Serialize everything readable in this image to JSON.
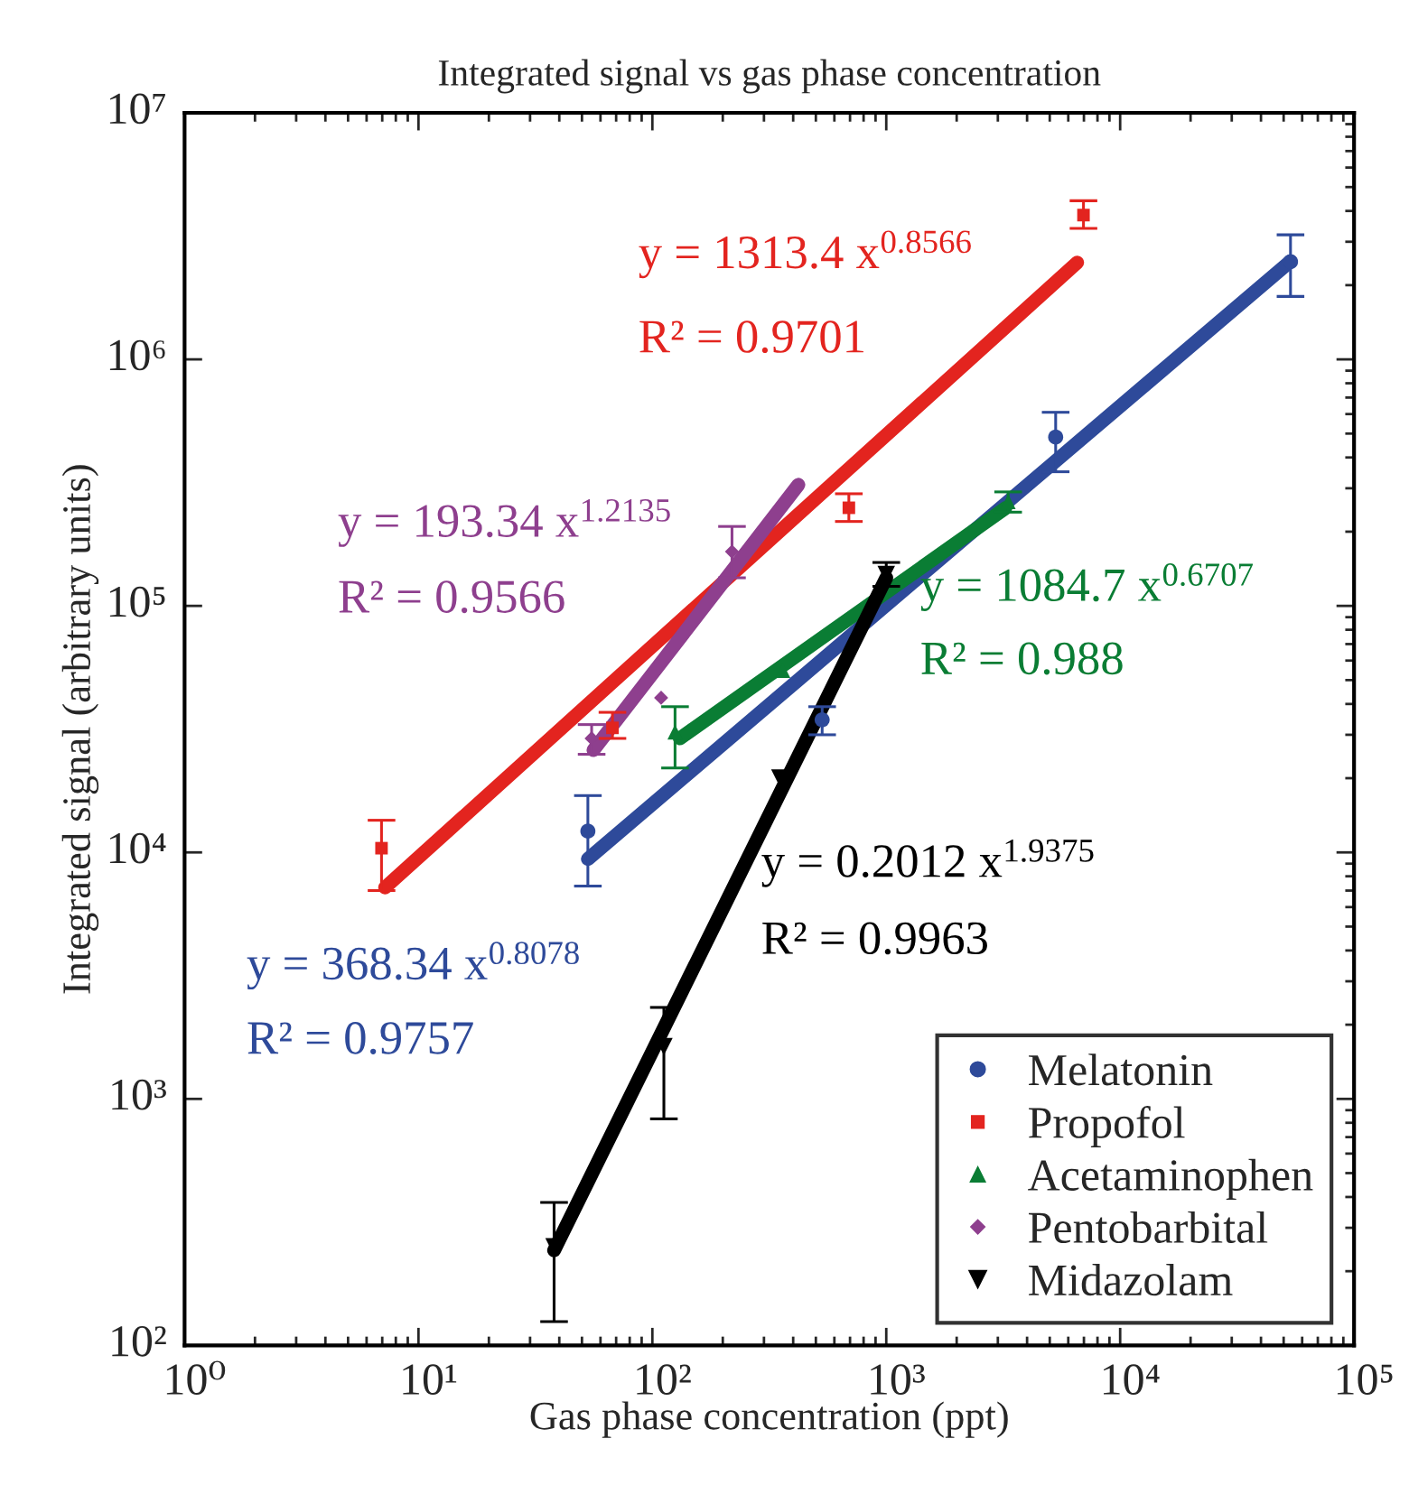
{
  "chart_data": {
    "type": "scatter",
    "title": "Integrated signal vs gas phase concentration",
    "xlabel": "Gas phase concentration (ppt)",
    "ylabel": "Integrated signal (arbitrary units)",
    "log": "xy",
    "xlim": [
      1,
      100000
    ],
    "ylim": [
      100,
      10000000
    ],
    "xticks": [
      {
        "value": 1,
        "label": "10⁰"
      },
      {
        "value": 10,
        "label": "10¹"
      },
      {
        "value": 100,
        "label": "10²"
      },
      {
        "value": 1000,
        "label": "10³"
      },
      {
        "value": 10000,
        "label": "10⁴"
      },
      {
        "value": 100000,
        "label": "10⁵"
      }
    ],
    "yticks": [
      {
        "value": 100,
        "label": "10²"
      },
      {
        "value": 1000,
        "label": "10³"
      },
      {
        "value": 10000,
        "label": "10⁴"
      },
      {
        "value": 100000,
        "label": "10⁵"
      },
      {
        "value": 1000000,
        "label": "10⁶"
      },
      {
        "value": 10000000,
        "label": "10⁷"
      }
    ],
    "grid": false,
    "legend": "bottom right",
    "series": [
      {
        "name": "Melatonin",
        "color": "#2e4a9a",
        "marker": "circle",
        "x": [
          53,
          532,
          5300,
          53500
        ],
        "values": [
          12200,
          34500,
          484000,
          2490000
        ],
        "errors": [
          [
            7300,
            17000
          ],
          [
            30000,
            39000
          ],
          [
            350000,
            610000
          ],
          [
            1800000,
            3200000
          ]
        ]
      },
      {
        "name": "Propofol",
        "color": "#e3241f",
        "marker": "square",
        "x": [
          6.95,
          67.5,
          692,
          6970
        ],
        "values": [
          10400,
          32000,
          250000,
          3850000
        ],
        "errors": [
          [
            7000,
            13500
          ],
          [
            29000,
            37000
          ],
          [
            220000,
            285000
          ],
          [
            3400000,
            4400000
          ]
        ]
      },
      {
        "name": "Acetaminophen",
        "color": "#0a7d34",
        "marker": "triangle",
        "x": [
          125,
          361,
          3320
        ],
        "values": [
          30800,
          54700,
          265000
        ],
        "errors": [
          [
            22000,
            39000
          ],
          null,
          [
            240000,
            290000
          ]
        ]
      },
      {
        "name": "Pentobarbital",
        "color": "#8e3f8e",
        "marker": "diamond",
        "x": [
          55,
          109,
          219
        ],
        "values": [
          29000,
          42400,
          166000
        ],
        "errors": [
          [
            25000,
            33000
          ],
          null,
          [
            130000,
            210000
          ]
        ]
      },
      {
        "name": "Midazolam",
        "color": "#000000",
        "marker": "triangle_down",
        "x": [
          38,
          112,
          351,
          1000
        ],
        "values": [
          251,
          1630,
          20000,
          134000
        ],
        "errors": [
          [
            125,
            380
          ],
          [
            830,
            2350
          ],
          null,
          [
            120000,
            150000
          ]
        ]
      },
      {
        "type": "line",
        "color": "#2e4a9a",
        "x": [
          53,
          53500
        ],
        "values": [
          9400,
          2500000
        ]
      },
      {
        "type": "line",
        "color": "#e3241f",
        "x": [
          7.2,
          6550
        ],
        "values": [
          7200,
          2470000
        ]
      },
      {
        "type": "line",
        "color": "#0a7d34",
        "x": [
          131,
          3230
        ],
        "values": [
          29000,
          249000
        ]
      },
      {
        "type": "line",
        "color": "#8e3f8e",
        "x": [
          56,
          421
        ],
        "values": [
          26000,
          310000
        ]
      },
      {
        "type": "line",
        "color": "#000000",
        "x": [
          38,
          1000
        ],
        "values": [
          243,
          130000
        ]
      }
    ],
    "annotations": [
      "y = 368.34 x$^{0.8078}$",
      "R² = 0.9757",
      "y = 1313.4 x$^{0.8566}$",
      "R² = 0.9701",
      "y = 1084.7 x$^{0.6707}$",
      "R² = 0.988",
      "y = 193.34 x$^{1.2135}$",
      "R² = 0.9566",
      "y = 0.2012 x$^{1.9375}$",
      "R² = 0.9963"
    ]
  }
}
